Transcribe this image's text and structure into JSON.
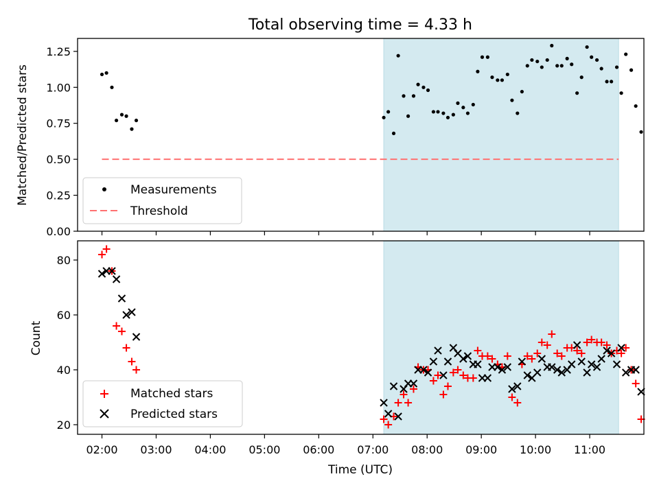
{
  "chart_data": [
    {
      "type": "scatter",
      "title": "Total observing time = 4.33 h",
      "xlabel": "",
      "ylabel": "Matched/Predicted stars",
      "xlim": [
        "01:33",
        "12:00"
      ],
      "ylim": [
        0,
        1.34
      ],
      "y_ticks": [
        "0.00",
        "0.25",
        "0.50",
        "0.75",
        "1.00",
        "1.25"
      ],
      "shaded_interval": {
        "start": "07:12",
        "end": "11:32",
        "color": "#d4eaf0"
      },
      "legend_position": "lower-left",
      "series": [
        {
          "name": "Measurements",
          "marker": "dot",
          "color": "#000000",
          "points": [
            [
              "02:00",
              1.09
            ],
            [
              "02:05",
              1.1
            ],
            [
              "02:11",
              1.0
            ],
            [
              "02:16",
              0.77
            ],
            [
              "02:22",
              0.81
            ],
            [
              "02:27",
              0.8
            ],
            [
              "02:33",
              0.71
            ],
            [
              "02:38",
              0.77
            ],
            [
              "07:12",
              0.79
            ],
            [
              "07:17",
              0.83
            ],
            [
              "07:23",
              0.68
            ],
            [
              "07:28",
              1.22
            ],
            [
              "07:34",
              0.94
            ],
            [
              "07:39",
              0.8
            ],
            [
              "07:45",
              0.94
            ],
            [
              "07:50",
              1.02
            ],
            [
              "07:56",
              1.0
            ],
            [
              "08:01",
              0.98
            ],
            [
              "08:07",
              0.83
            ],
            [
              "08:12",
              0.83
            ],
            [
              "08:18",
              0.82
            ],
            [
              "08:23",
              0.79
            ],
            [
              "08:29",
              0.81
            ],
            [
              "08:34",
              0.89
            ],
            [
              "08:40",
              0.86
            ],
            [
              "08:45",
              0.82
            ],
            [
              "08:51",
              0.88
            ],
            [
              "08:56",
              1.11
            ],
            [
              "09:01",
              1.21
            ],
            [
              "09:07",
              1.21
            ],
            [
              "09:12",
              1.07
            ],
            [
              "09:18",
              1.05
            ],
            [
              "09:23",
              1.05
            ],
            [
              "09:29",
              1.09
            ],
            [
              "09:34",
              0.91
            ],
            [
              "09:40",
              0.82
            ],
            [
              "09:45",
              0.97
            ],
            [
              "09:51",
              1.15
            ],
            [
              "09:56",
              1.19
            ],
            [
              "10:02",
              1.18
            ],
            [
              "10:07",
              1.14
            ],
            [
              "10:13",
              1.19
            ],
            [
              "10:18",
              1.29
            ],
            [
              "10:24",
              1.15
            ],
            [
              "10:29",
              1.15
            ],
            [
              "10:35",
              1.2
            ],
            [
              "10:40",
              1.16
            ],
            [
              "10:46",
              0.96
            ],
            [
              "10:51",
              1.07
            ],
            [
              "10:57",
              1.28
            ],
            [
              "11:02",
              1.21
            ],
            [
              "11:08",
              1.19
            ],
            [
              "11:13",
              1.13
            ],
            [
              "11:19",
              1.04
            ],
            [
              "11:24",
              1.04
            ],
            [
              "11:30",
              1.14
            ],
            [
              "11:35",
              0.96
            ],
            [
              "11:40",
              1.23
            ],
            [
              "11:46",
              1.12
            ],
            [
              "11:51",
              0.87
            ],
            [
              "11:57",
              0.69
            ]
          ]
        },
        {
          "name": "Threshold",
          "marker": "dashed-line",
          "color": "#ff7070",
          "points": [
            [
              "02:00",
              0.5
            ],
            [
              "11:32",
              0.5
            ]
          ]
        }
      ]
    },
    {
      "type": "scatter",
      "title": "",
      "xlabel": "Time (UTC)",
      "ylabel": "Count",
      "xlim": [
        "01:33",
        "12:00"
      ],
      "ylim": [
        16.5,
        87
      ],
      "y_ticks": [
        "20",
        "40",
        "60",
        "80"
      ],
      "x_ticks": [
        "02:00",
        "03:00",
        "04:00",
        "05:00",
        "06:00",
        "07:00",
        "08:00",
        "09:00",
        "10:00",
        "11:00"
      ],
      "shaded_interval": {
        "start": "07:12",
        "end": "11:32",
        "color": "#d4eaf0"
      },
      "legend_position": "lower-left",
      "series": [
        {
          "name": "Matched stars",
          "marker": "plus",
          "color": "#ff0000",
          "points": [
            [
              "02:00",
              82
            ],
            [
              "02:05",
              84
            ],
            [
              "02:11",
              76
            ],
            [
              "02:16",
              56
            ],
            [
              "02:22",
              54
            ],
            [
              "02:27",
              48
            ],
            [
              "02:33",
              43
            ],
            [
              "02:38",
              40
            ],
            [
              "07:12",
              22
            ],
            [
              "07:17",
              20
            ],
            [
              "07:23",
              23
            ],
            [
              "07:28",
              28
            ],
            [
              "07:34",
              31
            ],
            [
              "07:39",
              28
            ],
            [
              "07:45",
              33
            ],
            [
              "07:50",
              41
            ],
            [
              "07:56",
              40
            ],
            [
              "08:01",
              40
            ],
            [
              "08:07",
              36
            ],
            [
              "08:12",
              38
            ],
            [
              "08:18",
              31
            ],
            [
              "08:23",
              34
            ],
            [
              "08:29",
              39
            ],
            [
              "08:34",
              40
            ],
            [
              "08:40",
              38
            ],
            [
              "08:45",
              37
            ],
            [
              "08:51",
              37
            ],
            [
              "08:56",
              47
            ],
            [
              "09:01",
              45
            ],
            [
              "09:07",
              45
            ],
            [
              "09:12",
              44
            ],
            [
              "09:18",
              42
            ],
            [
              "09:23",
              41
            ],
            [
              "09:29",
              45
            ],
            [
              "09:34",
              30
            ],
            [
              "09:40",
              28
            ],
            [
              "09:45",
              42
            ],
            [
              "09:51",
              45
            ],
            [
              "09:56",
              44
            ],
            [
              "10:02",
              46
            ],
            [
              "10:07",
              50
            ],
            [
              "10:13",
              49
            ],
            [
              "10:18",
              53
            ],
            [
              "10:24",
              46
            ],
            [
              "10:29",
              45
            ],
            [
              "10:35",
              48
            ],
            [
              "10:40",
              48
            ],
            [
              "10:46",
              47
            ],
            [
              "10:51",
              46
            ],
            [
              "10:57",
              50
            ],
            [
              "11:02",
              51
            ],
            [
              "11:08",
              50
            ],
            [
              "11:13",
              50
            ],
            [
              "11:19",
              49
            ],
            [
              "11:24",
              46
            ],
            [
              "11:30",
              47
            ],
            [
              "11:35",
              46
            ],
            [
              "11:40",
              48
            ],
            [
              "11:46",
              40
            ],
            [
              "11:51",
              35
            ],
            [
              "11:57",
              22
            ]
          ]
        },
        {
          "name": "Predicted stars",
          "marker": "x",
          "color": "#000000",
          "points": [
            [
              "02:00",
              75
            ],
            [
              "02:05",
              76
            ],
            [
              "02:11",
              76
            ],
            [
              "02:16",
              73
            ],
            [
              "02:22",
              66
            ],
            [
              "02:27",
              60
            ],
            [
              "02:33",
              61
            ],
            [
              "02:38",
              52
            ],
            [
              "07:12",
              28
            ],
            [
              "07:17",
              24
            ],
            [
              "07:23",
              34
            ],
            [
              "07:28",
              23
            ],
            [
              "07:34",
              33
            ],
            [
              "07:39",
              35
            ],
            [
              "07:45",
              35
            ],
            [
              "07:50",
              40
            ],
            [
              "07:56",
              40
            ],
            [
              "08:01",
              39
            ],
            [
              "08:07",
              43
            ],
            [
              "08:12",
              47
            ],
            [
              "08:18",
              38
            ],
            [
              "08:23",
              43
            ],
            [
              "08:29",
              48
            ],
            [
              "08:34",
              46
            ],
            [
              "08:40",
              44
            ],
            [
              "08:45",
              45
            ],
            [
              "08:51",
              42
            ],
            [
              "08:56",
              42
            ],
            [
              "09:01",
              37
            ],
            [
              "09:07",
              37
            ],
            [
              "09:12",
              41
            ],
            [
              "09:18",
              41
            ],
            [
              "09:23",
              40
            ],
            [
              "09:29",
              41
            ],
            [
              "09:34",
              33
            ],
            [
              "09:40",
              34
            ],
            [
              "09:45",
              43
            ],
            [
              "09:51",
              38
            ],
            [
              "09:56",
              37
            ],
            [
              "10:02",
              39
            ],
            [
              "10:07",
              44
            ],
            [
              "10:13",
              41
            ],
            [
              "10:18",
              41
            ],
            [
              "10:24",
              40
            ],
            [
              "10:29",
              39
            ],
            [
              "10:35",
              40
            ],
            [
              "10:40",
              42
            ],
            [
              "10:46",
              49
            ],
            [
              "10:51",
              43
            ],
            [
              "10:57",
              39
            ],
            [
              "11:02",
              42
            ],
            [
              "11:08",
              41
            ],
            [
              "11:13",
              44
            ],
            [
              "11:19",
              47
            ],
            [
              "11:24",
              46
            ],
            [
              "11:30",
              42
            ],
            [
              "11:35",
              48
            ],
            [
              "11:40",
              39
            ],
            [
              "11:46",
              40
            ],
            [
              "11:51",
              40
            ],
            [
              "11:57",
              32
            ]
          ]
        }
      ]
    }
  ]
}
